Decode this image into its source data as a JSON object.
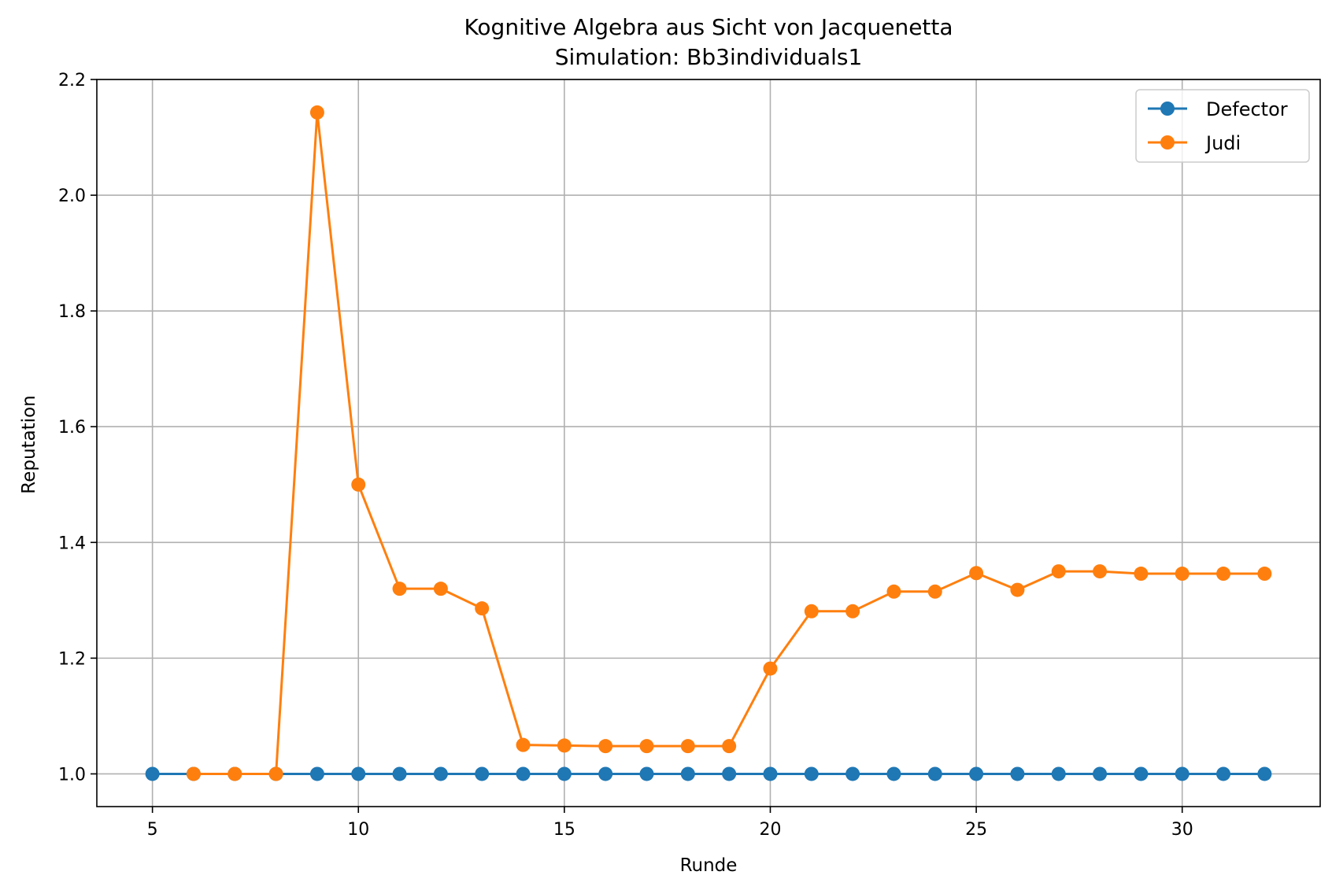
{
  "chart_data": {
    "type": "line",
    "title": "Kognitive Algebra aus Sicht von Jacquenetta",
    "subtitle": "Simulation: Bb3individuals1",
    "xlabel": "Runde",
    "ylabel": "Reputation",
    "xlim": [
      3.65,
      33.35
    ],
    "ylim": [
      0.9435,
      2.2
    ],
    "xticks": [
      5,
      10,
      15,
      20,
      25,
      30
    ],
    "xtick_labels": [
      "5",
      "10",
      "15",
      "20",
      "25",
      "30"
    ],
    "yticks": [
      1.0,
      1.2,
      1.4,
      1.6,
      1.8,
      2.0,
      2.2
    ],
    "ytick_labels": [
      "1.0",
      "1.2",
      "1.4",
      "1.6",
      "1.8",
      "2.0",
      "2.2"
    ],
    "grid": true,
    "legend_position": "upper right",
    "series": [
      {
        "name": "Defector",
        "color": "#1f77b4",
        "marker": "circle",
        "x": [
          5,
          6,
          7,
          8,
          9,
          10,
          11,
          12,
          13,
          14,
          15,
          16,
          17,
          18,
          19,
          20,
          21,
          22,
          23,
          24,
          25,
          26,
          27,
          28,
          29,
          30,
          31,
          32
        ],
        "y": [
          1,
          1,
          1,
          1,
          1,
          1,
          1,
          1,
          1,
          1,
          1,
          1,
          1,
          1,
          1,
          1,
          1,
          1,
          1,
          1,
          1,
          1,
          1,
          1,
          1,
          1,
          1,
          1
        ]
      },
      {
        "name": "Judi",
        "color": "#ff7f0e",
        "marker": "circle",
        "x": [
          6,
          7,
          8,
          9,
          10,
          11,
          12,
          13,
          14,
          15,
          16,
          17,
          18,
          19,
          20,
          21,
          22,
          23,
          24,
          25,
          26,
          27,
          28,
          29,
          30,
          31,
          32
        ],
        "y": [
          1.0,
          1.0,
          1.0,
          2.143,
          1.5,
          1.32,
          1.32,
          1.286,
          1.05,
          1.049,
          1.048,
          1.048,
          1.048,
          1.048,
          1.182,
          1.281,
          1.281,
          1.315,
          1.315,
          1.347,
          1.318,
          1.35,
          1.35,
          1.346,
          1.346,
          1.346,
          1.346
        ]
      }
    ]
  }
}
